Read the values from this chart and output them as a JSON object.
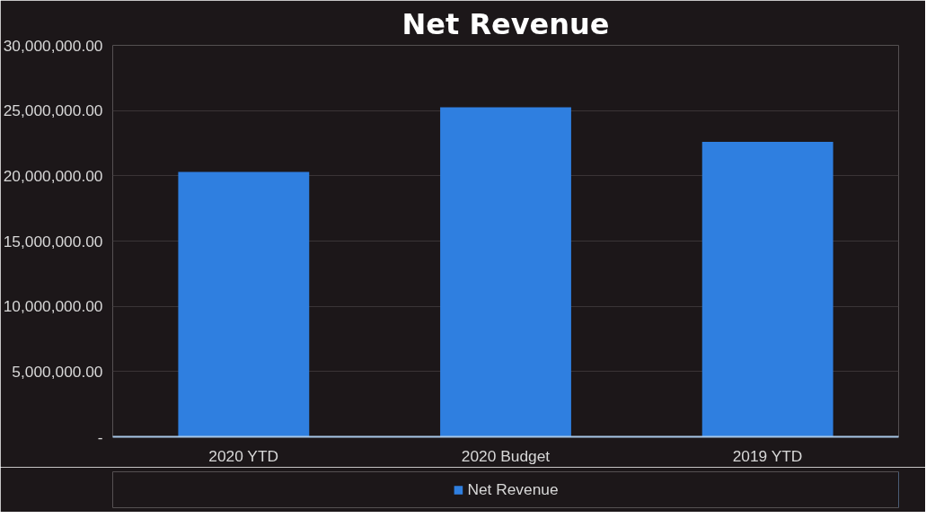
{
  "chart_data": {
    "type": "bar",
    "title": "Net Revenue",
    "categories": [
      "2020 YTD",
      "2020 Budget",
      "2019 YTD"
    ],
    "series": [
      {
        "name": "Net Revenue",
        "color": "#2f7fe0",
        "values": [
          20300000,
          25250000,
          22600000
        ]
      }
    ],
    "ylim": [
      0,
      30000000
    ],
    "yticks": [
      {
        "value": 0,
        "label": "-"
      },
      {
        "value": 5000000,
        "label": "5,000,000.00"
      },
      {
        "value": 10000000,
        "label": "10,000,000.00"
      },
      {
        "value": 15000000,
        "label": "15,000,000.00"
      },
      {
        "value": 20000000,
        "label": "20,000,000.00"
      },
      {
        "value": 25000000,
        "label": "25,000,000.00"
      },
      {
        "value": 30000000,
        "label": "30,000,000.00"
      }
    ],
    "grid": "y",
    "legend": "bottom"
  }
}
